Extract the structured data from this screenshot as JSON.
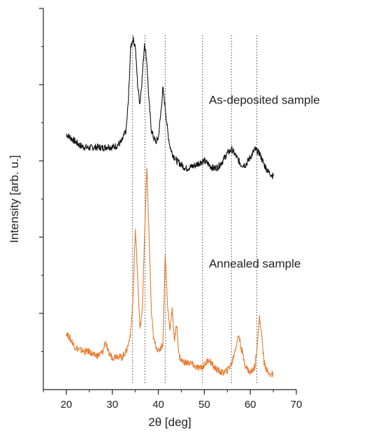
{
  "chart_data": {
    "type": "line",
    "xlabel": "2θ [deg]",
    "ylabel": "Intensity [arb. u.]",
    "xlim": [
      15,
      70
    ],
    "ylim": [
      0,
      5
    ],
    "x_ticks": [
      20,
      30,
      40,
      50,
      60,
      70
    ],
    "y_ticks": [
      1,
      2,
      3,
      4,
      5
    ],
    "y_tick_labels_shown": false,
    "grid": false,
    "legend": "none",
    "reference_lines_x": [
      34.4,
      37.1,
      41.5,
      49.6,
      55.9,
      61.4
    ],
    "annotations": [
      {
        "text": "As-deposited sample",
        "x": 51.0,
        "y": 3.75
      },
      {
        "text": "Annealed sample",
        "x": 51.0,
        "y": 1.6
      }
    ],
    "series": [
      {
        "color": "#111111",
        "x": [
          20,
          21,
          22,
          23,
          24,
          25,
          26,
          27,
          28,
          29,
          30,
          31,
          32,
          33,
          33.5,
          34,
          34.5,
          35,
          35.5,
          36,
          36.5,
          37,
          37.5,
          38,
          38.5,
          39,
          39.5,
          40,
          40.5,
          41,
          41.5,
          42,
          42.5,
          43,
          44,
          45,
          46,
          47,
          48,
          49,
          50,
          51,
          52,
          53,
          54,
          55,
          56,
          57,
          58,
          59,
          60,
          61,
          62,
          63,
          64,
          65
        ],
        "values": [
          3.35,
          3.3,
          3.25,
          3.2,
          3.18,
          3.17,
          3.18,
          3.18,
          3.17,
          3.19,
          3.18,
          3.2,
          3.25,
          3.4,
          3.8,
          4.5,
          4.6,
          4.5,
          4.0,
          3.75,
          4.1,
          4.55,
          4.3,
          3.75,
          3.4,
          3.3,
          3.25,
          3.3,
          3.6,
          3.95,
          3.7,
          3.4,
          3.2,
          3.1,
          3.0,
          2.95,
          2.9,
          2.92,
          2.94,
          2.98,
          3.0,
          2.95,
          2.9,
          2.92,
          3.0,
          3.1,
          3.15,
          3.05,
          2.95,
          2.95,
          3.05,
          3.15,
          3.1,
          2.95,
          2.85,
          2.8
        ]
      },
      {
        "color": "#E87A2E",
        "x": [
          20,
          21,
          22,
          23,
          24,
          25,
          26,
          27,
          28,
          28.5,
          29,
          30,
          31,
          32,
          33,
          33.5,
          34,
          34.5,
          35,
          35.5,
          36,
          36.5,
          37,
          37.5,
          38,
          38.5,
          39,
          40,
          41,
          41.5,
          42,
          42.5,
          43,
          43.5,
          44,
          44.5,
          45,
          46,
          47,
          48,
          49,
          50,
          51,
          52,
          53,
          54,
          55,
          56,
          57,
          57.5,
          58,
          59,
          60,
          61,
          61.5,
          62,
          62.5,
          63,
          64,
          65
        ],
        "values": [
          0.75,
          0.65,
          0.55,
          0.52,
          0.5,
          0.5,
          0.45,
          0.45,
          0.5,
          0.65,
          0.5,
          0.42,
          0.45,
          0.42,
          0.5,
          0.6,
          0.75,
          1.2,
          2.1,
          1.5,
          0.8,
          1.0,
          2.0,
          2.9,
          2.0,
          1.0,
          0.65,
          0.5,
          0.6,
          1.8,
          1.1,
          0.8,
          1.05,
          0.65,
          0.85,
          0.45,
          0.38,
          0.35,
          0.35,
          0.3,
          0.28,
          0.32,
          0.4,
          0.3,
          0.25,
          0.22,
          0.25,
          0.35,
          0.6,
          0.72,
          0.55,
          0.3,
          0.22,
          0.3,
          0.6,
          0.95,
          0.7,
          0.35,
          0.2,
          0.2
        ]
      }
    ]
  }
}
